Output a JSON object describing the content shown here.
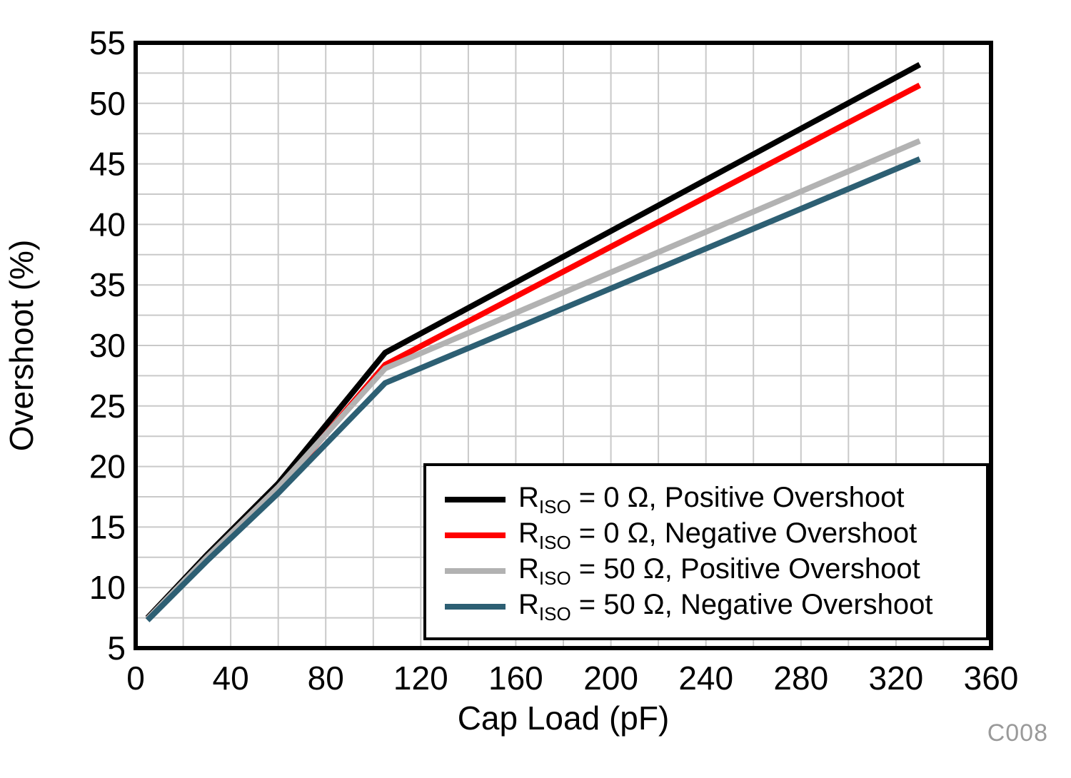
{
  "chart_data": {
    "type": "line",
    "title": "",
    "xlabel": "Cap Load (pF)",
    "ylabel": "Overshoot (%)",
    "xlim": [
      0,
      360
    ],
    "ylim": [
      5,
      55
    ],
    "x_major_ticks": [
      0,
      40,
      80,
      120,
      160,
      200,
      240,
      280,
      320,
      360
    ],
    "y_major_ticks": [
      5,
      10,
      15,
      20,
      25,
      30,
      35,
      40,
      45,
      50,
      55
    ],
    "x_minor_step": 20,
    "y_minor_step": 2.5,
    "grid": true,
    "grid_color": "#c9c9c9",
    "legend_position": "lower-right",
    "line_width": 8,
    "watermark": "C008",
    "series": [
      {
        "name": "R_ISO = 0 Ohm, Positive Overshoot",
        "color": "#000000",
        "points": [
          [
            5,
            7.5
          ],
          [
            30,
            12.7
          ],
          [
            60,
            18.6
          ],
          [
            105,
            29.4
          ],
          [
            330,
            53.2
          ]
        ]
      },
      {
        "name": "R_ISO = 0 Ohm, Negative Overshoot",
        "color": "#ff0000",
        "points": [
          [
            5,
            7.4
          ],
          [
            30,
            12.4
          ],
          [
            60,
            18.1
          ],
          [
            105,
            28.4
          ],
          [
            330,
            51.5
          ]
        ]
      },
      {
        "name": "R_ISO = 50 Ohm, Positive Overshoot",
        "color": "#b2b2b2",
        "points": [
          [
            5,
            7.4
          ],
          [
            30,
            12.5
          ],
          [
            60,
            18.3
          ],
          [
            105,
            28.1
          ],
          [
            330,
            46.9
          ]
        ]
      },
      {
        "name": "R_ISO = 50 Ohm, Negative Overshoot",
        "color": "#2d5f73",
        "points": [
          [
            5,
            7.3
          ],
          [
            30,
            12.2
          ],
          [
            60,
            17.8
          ],
          [
            105,
            26.9
          ],
          [
            330,
            45.4
          ]
        ]
      }
    ]
  },
  "legend": {
    "items": [
      {
        "pre": "R",
        "sub": "ISO",
        "post": " = 0 Ω, Positive Overshoot"
      },
      {
        "pre": "R",
        "sub": "ISO",
        "post": " = 0 Ω, Negative Overshoot"
      },
      {
        "pre": "R",
        "sub": "ISO",
        "post": " = 50 Ω, Positive Overshoot"
      },
      {
        "pre": "R",
        "sub": "ISO",
        "post": " = 50 Ω, Negative Overshoot"
      }
    ]
  }
}
